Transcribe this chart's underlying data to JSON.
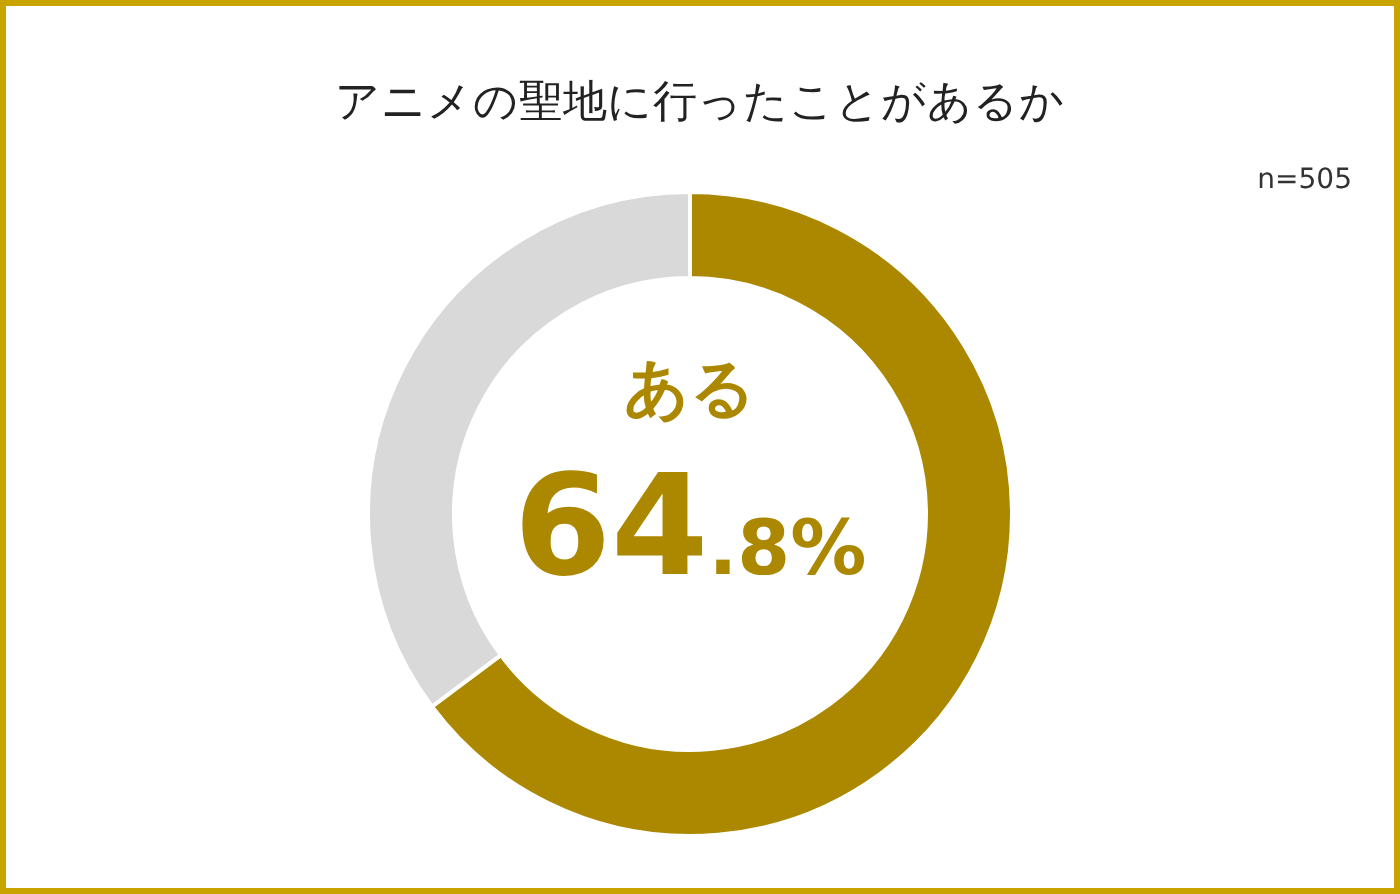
{
  "chart_data": {
    "type": "donut",
    "title": "アニメの聖地に行ったことがあるか",
    "categories": [
      "ある",
      null
    ],
    "values": [
      64.8,
      35.2
    ],
    "colors": [
      "#ab8800",
      "#d9d9d9"
    ],
    "value_labels": [
      "64.8%",
      null
    ],
    "annotations": [
      "n=505"
    ]
  }
}
